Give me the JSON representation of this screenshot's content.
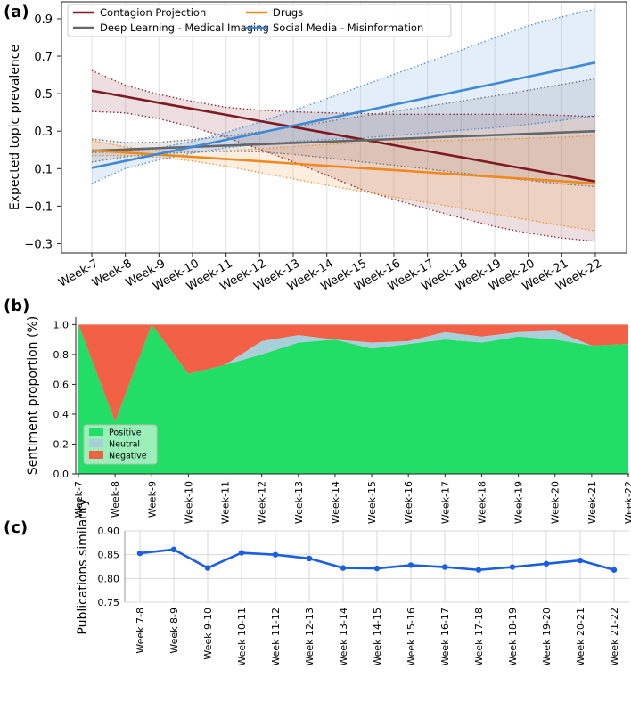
{
  "panels": {
    "a": "(a)",
    "b": "(b)",
    "c": "(c)"
  },
  "chart_data": [
    {
      "type": "line",
      "title": "",
      "xlabel": "",
      "ylabel": "Expected topic prevalence",
      "categories": [
        "Week-7",
        "Week-8",
        "Week-9",
        "Week-10",
        "Week-11",
        "Week-12",
        "Week-13",
        "Week-14",
        "Week-15",
        "Week-16",
        "Week-17",
        "Week-18",
        "Week-19",
        "Week-20",
        "Week-21",
        "Week-22"
      ],
      "ylim": [
        -0.35,
        0.99
      ],
      "yticks": [
        -0.3,
        -0.1,
        0.1,
        0.3,
        0.5,
        0.7,
        0.9
      ],
      "ytick_labels": [
        "−0.3",
        "−0.1",
        "0.1",
        "0.3",
        "0.5",
        "0.7",
        "0.9"
      ],
      "legend_position": "top-left",
      "series": [
        {
          "name": "Contagion Projection",
          "color": "#7f1a22",
          "values": [
            0.516,
            0.484,
            0.451,
            0.419,
            0.387,
            0.354,
            0.322,
            0.29,
            0.258,
            0.225,
            0.193,
            0.161,
            0.128,
            0.096,
            0.064,
            0.031
          ],
          "lower": [
            0.405,
            0.397,
            0.366,
            0.322,
            0.267,
            0.204,
            0.136,
            0.065,
            -0.009,
            -0.064,
            -0.115,
            -0.163,
            -0.209,
            -0.244,
            -0.27,
            -0.288
          ],
          "upper": [
            0.624,
            0.545,
            0.496,
            0.459,
            0.427,
            0.412,
            0.403,
            0.398,
            0.394,
            0.39,
            0.39,
            0.39,
            0.39,
            0.39,
            0.384,
            0.378
          ]
        },
        {
          "name": "Deep Learning - Medical Imaging",
          "color": "#666666",
          "values": [
            0.195,
            0.202,
            0.209,
            0.216,
            0.223,
            0.23,
            0.237,
            0.244,
            0.251,
            0.258,
            0.265,
            0.272,
            0.279,
            0.286,
            0.293,
            0.3
          ],
          "lower": [
            0.135,
            0.163,
            0.18,
            0.188,
            0.192,
            0.19,
            0.176,
            0.158,
            0.137,
            0.118,
            0.098,
            0.077,
            0.057,
            0.037,
            0.018,
            0.004
          ],
          "upper": [
            0.258,
            0.239,
            0.241,
            0.255,
            0.274,
            0.296,
            0.322,
            0.351,
            0.379,
            0.405,
            0.432,
            0.46,
            0.488,
            0.518,
            0.549,
            0.58
          ]
        },
        {
          "name": "Drugs",
          "color": "#ef8a1f",
          "values": [
            0.198,
            0.186,
            0.174,
            0.163,
            0.151,
            0.139,
            0.127,
            0.115,
            0.103,
            0.092,
            0.08,
            0.068,
            0.056,
            0.044,
            0.033,
            0.021
          ],
          "lower": [
            0.169,
            0.17,
            0.16,
            0.141,
            0.113,
            0.079,
            0.045,
            0.012,
            -0.02,
            -0.051,
            -0.081,
            -0.111,
            -0.142,
            -0.174,
            -0.204,
            -0.232
          ],
          "upper": [
            0.25,
            0.216,
            0.196,
            0.192,
            0.196,
            0.206,
            0.218,
            0.229,
            0.237,
            0.241,
            0.247,
            0.252,
            0.257,
            0.262,
            0.268,
            0.276
          ]
        },
        {
          "name": "Social Media - Misinformation",
          "color": "#3d8ad6",
          "values": [
            0.104,
            0.141,
            0.179,
            0.216,
            0.254,
            0.291,
            0.329,
            0.366,
            0.403,
            0.441,
            0.478,
            0.516,
            0.553,
            0.591,
            0.628,
            0.666
          ],
          "lower": [
            0.02,
            0.101,
            0.147,
            0.183,
            0.211,
            0.231,
            0.245,
            0.255,
            0.264,
            0.276,
            0.291,
            0.305,
            0.318,
            0.336,
            0.357,
            0.384
          ],
          "upper": [
            0.185,
            0.192,
            0.21,
            0.246,
            0.293,
            0.348,
            0.409,
            0.473,
            0.538,
            0.603,
            0.667,
            0.732,
            0.798,
            0.863,
            0.91,
            0.951
          ]
        }
      ]
    },
    {
      "type": "area",
      "title": "",
      "xlabel": "",
      "ylabel": "Sentiment proportion (%)",
      "categories": [
        "Week-7",
        "Week-8",
        "Week-9",
        "Week-10",
        "Week-11",
        "Week-12",
        "Week-13",
        "Week-14",
        "Week-15",
        "Week-16",
        "Week-17",
        "Week-18",
        "Week-19",
        "Week-20",
        "Week-21",
        "Week-22"
      ],
      "ylim": [
        0,
        1.05
      ],
      "yticks": [
        0.0,
        0.2,
        0.4,
        0.6,
        0.8,
        1.0
      ],
      "ytick_labels": [
        "0.0",
        "0.2",
        "0.4",
        "0.6",
        "0.8",
        "1.0"
      ],
      "stacked": true,
      "legend_position": "bottom-left",
      "series": [
        {
          "name": "Positive",
          "color": "#22dd66",
          "values": [
            1.0,
            0.35,
            1.0,
            0.67,
            0.73,
            0.8,
            0.88,
            0.9,
            0.84,
            0.87,
            0.9,
            0.88,
            0.92,
            0.9,
            0.86,
            0.87
          ]
        },
        {
          "name": "Neutral",
          "color": "#a9cfdb",
          "values": [
            0.0,
            0.0,
            0.0,
            0.0,
            0.0,
            0.09,
            0.05,
            0.0,
            0.04,
            0.02,
            0.05,
            0.04,
            0.03,
            0.06,
            0.0,
            0.0
          ]
        },
        {
          "name": "Negative",
          "color": "#f26046",
          "values": [
            0.0,
            0.65,
            0.0,
            0.33,
            0.27,
            0.11,
            0.07,
            0.1,
            0.12,
            0.11,
            0.05,
            0.08,
            0.05,
            0.04,
            0.14,
            0.13
          ]
        }
      ]
    },
    {
      "type": "line",
      "title": "",
      "xlabel": "",
      "ylabel": "Publications similarity",
      "categories": [
        "Week 7-8",
        "Week 8-9",
        "Week 9-10",
        "Week 10-11",
        "Week 11-12",
        "Week 12-13",
        "Week 13-14",
        "Week 14-15",
        "Week 15-16",
        "Week 16-17",
        "Week 17-18",
        "Week 18-19",
        "Week 19-20",
        "Week 20-21",
        "Week 21-22"
      ],
      "ylim": [
        0.75,
        0.9
      ],
      "yticks": [
        0.75,
        0.8,
        0.85,
        0.9
      ],
      "ytick_labels": [
        "0.75",
        "0.80",
        "0.85",
        "0.90"
      ],
      "grid": true,
      "series": [
        {
          "name": "Publications similarity",
          "color": "#1a5fe0",
          "values": [
            0.853,
            0.861,
            0.822,
            0.854,
            0.85,
            0.842,
            0.822,
            0.821,
            0.828,
            0.824,
            0.818,
            0.824,
            0.831,
            0.838,
            0.818
          ]
        }
      ]
    }
  ]
}
